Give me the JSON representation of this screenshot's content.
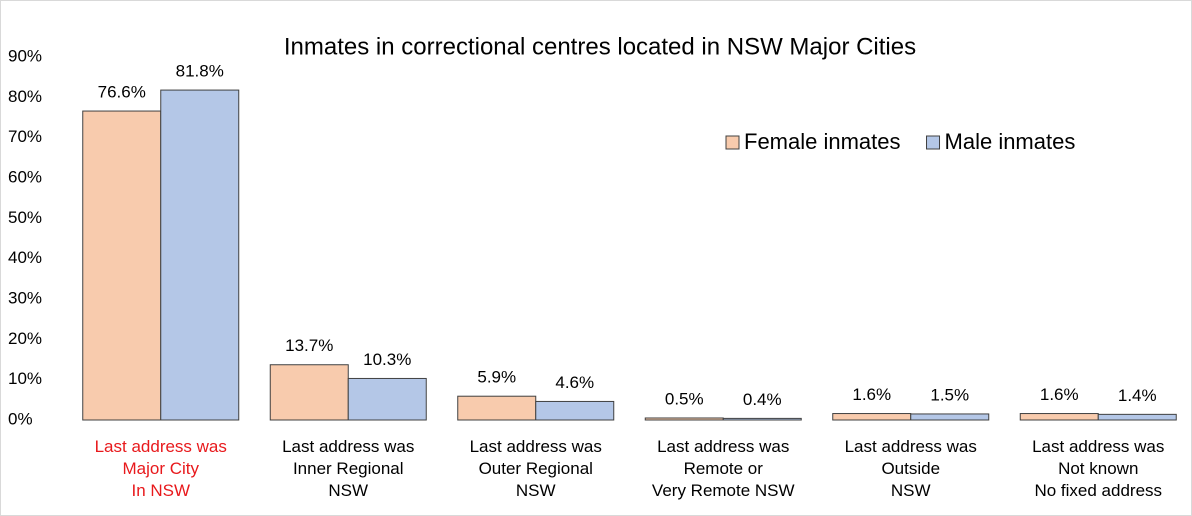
{
  "chart_data": {
    "type": "bar",
    "title": "Inmates in correctional centres located in NSW Major Cities",
    "categories": [
      "Last address was\nMajor City\nIn NSW",
      "Last address was\nInner Regional\nNSW",
      "Last address was\nOuter Regional\nNSW",
      "Last address was\nRemote or\nVery Remote NSW",
      "Last address was\nOutside\nNSW",
      "Last address was\nNot known\nNo fixed address"
    ],
    "category_colors": [
      "#e8191c",
      "#000000",
      "#000000",
      "#000000",
      "#000000",
      "#000000"
    ],
    "series": [
      {
        "name": "Female inmates",
        "color": "#f8cbad",
        "values": [
          76.6,
          13.7,
          5.9,
          0.5,
          1.6,
          1.6
        ],
        "value_labels": [
          "76.6%",
          "13.7%",
          "5.9%",
          "0.5%",
          "1.6%",
          "1.6%"
        ]
      },
      {
        "name": "Male inmates",
        "color": "#b4c7e7",
        "values": [
          81.8,
          10.3,
          4.6,
          0.4,
          1.5,
          1.4
        ],
        "value_labels": [
          "81.8%",
          "10.3%",
          "4.6%",
          "0.4%",
          "1.5%",
          "1.4%"
        ]
      }
    ],
    "ylim": [
      0,
      90
    ],
    "yticks": [
      {
        "value": 0,
        "label": "0%"
      },
      {
        "value": 10,
        "label": "10%"
      },
      {
        "value": 20,
        "label": "20%"
      },
      {
        "value": 30,
        "label": "30%"
      },
      {
        "value": 40,
        "label": "40%"
      },
      {
        "value": 50,
        "label": "50%"
      },
      {
        "value": 60,
        "label": "60%"
      },
      {
        "value": 70,
        "label": "70%"
      },
      {
        "value": 80,
        "label": "80%"
      },
      {
        "value": 90,
        "label": "90%"
      }
    ],
    "grid": false,
    "legend": "upper right"
  }
}
